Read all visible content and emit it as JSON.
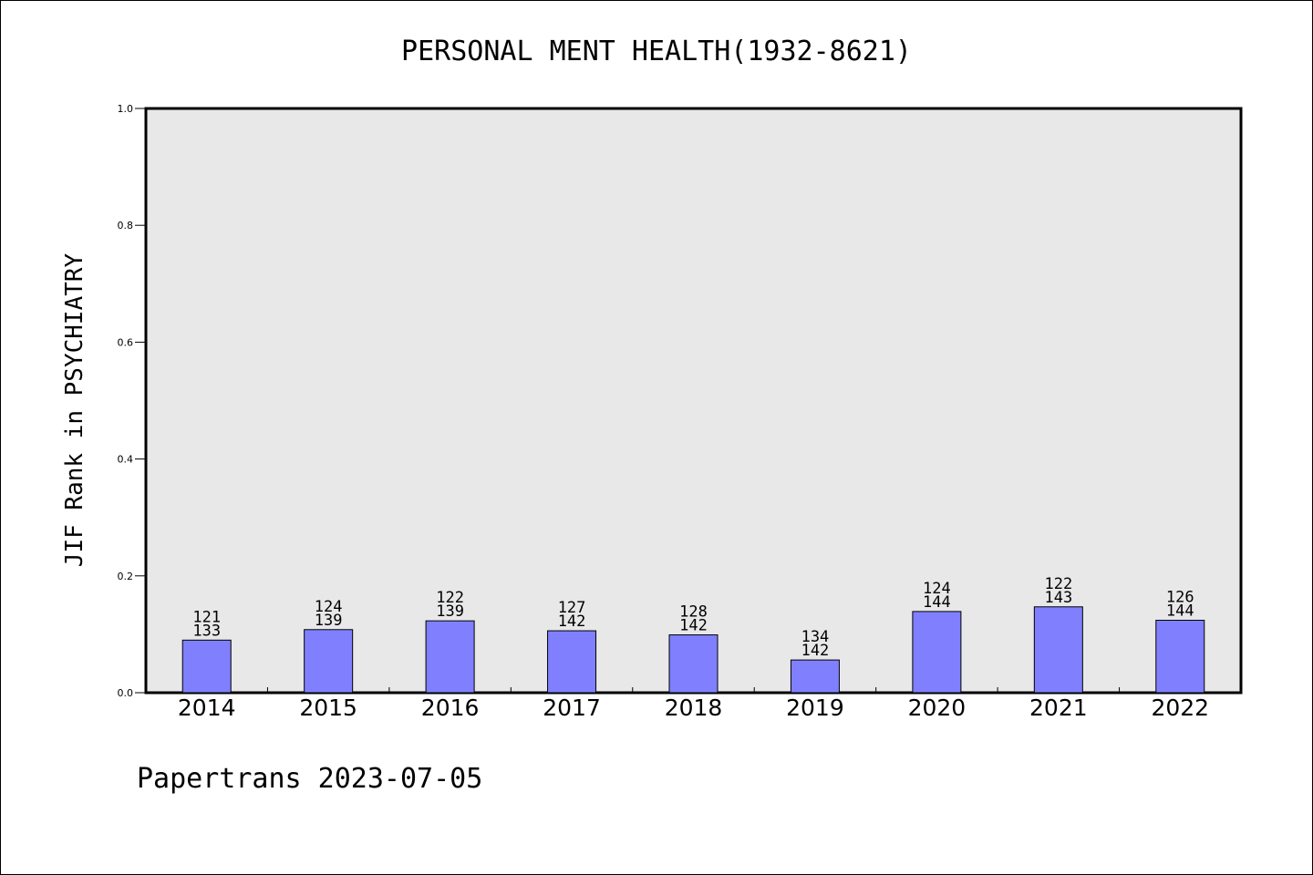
{
  "chart_data": {
    "type": "bar",
    "title": "PERSONAL MENT HEALTH(1932-8621)",
    "xlabel": "",
    "ylabel": "JIF Rank in PSYCHIATRY",
    "ylim": [
      0,
      1.0
    ],
    "yticks": [
      "0.0",
      "0.2",
      "0.4",
      "0.6",
      "0.8",
      "1.0"
    ],
    "categories": [
      "2014",
      "2015",
      "2016",
      "2017",
      "2018",
      "2019",
      "2020",
      "2021",
      "2022"
    ],
    "values": [
      0.09,
      0.108,
      0.123,
      0.106,
      0.099,
      0.056,
      0.139,
      0.147,
      0.124
    ],
    "labels": [
      [
        "121",
        "133"
      ],
      [
        "124",
        "139"
      ],
      [
        "122",
        "139"
      ],
      [
        "127",
        "142"
      ],
      [
        "128",
        "142"
      ],
      [
        "134",
        "142"
      ],
      [
        "124",
        "144"
      ],
      [
        "122",
        "143"
      ],
      [
        "126",
        "144"
      ]
    ],
    "bar_color": "#8080ff",
    "plot_bg": "#e8e8e8",
    "grid": false,
    "legend": "none"
  },
  "footer": "Papertrans 2023-07-05"
}
